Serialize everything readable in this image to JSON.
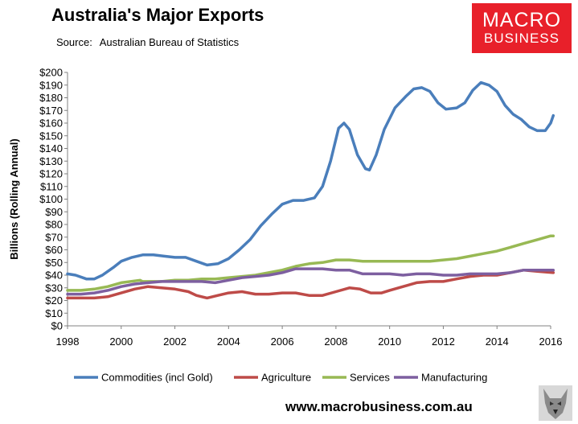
{
  "title": "Australia's Major Exports",
  "source_label": "Source:",
  "source_text": "Australian Bureau of Statistics",
  "logo": {
    "line1": "MACRO",
    "line2": "BUSINESS",
    "color": "#e8202a"
  },
  "website": "www.macrobusiness.com.au",
  "chart_data": {
    "type": "line",
    "ylabel": "Billions (Rolling Annual)",
    "xlabel": "",
    "xlim": [
      1998,
      2016
    ],
    "ylim": [
      0,
      200
    ],
    "y_ticks": [
      0,
      10,
      20,
      30,
      40,
      50,
      60,
      70,
      80,
      90,
      100,
      110,
      120,
      130,
      140,
      150,
      160,
      170,
      180,
      190,
      200
    ],
    "y_tick_labels": [
      "$0",
      "$10",
      "$20",
      "$30",
      "$40",
      "$50",
      "$60",
      "$70",
      "$80",
      "$90",
      "$100",
      "$110",
      "$120",
      "$130",
      "$140",
      "$150",
      "$160",
      "$170",
      "$180",
      "$190",
      "$200"
    ],
    "x_ticks": [
      1998,
      2000,
      2002,
      2004,
      2006,
      2008,
      2010,
      2012,
      2014,
      2016
    ],
    "x_tick_labels": [
      "1998",
      "2000",
      "2002",
      "2004",
      "2006",
      "2008",
      "2010",
      "2012",
      "2014",
      "2016"
    ],
    "grid": false,
    "legend_position": "bottom",
    "series": [
      {
        "name": "Commodities (incl Gold)",
        "color": "#4a7ebb",
        "points": [
          [
            1998,
            41
          ],
          [
            1998.3,
            40
          ],
          [
            1998.7,
            37
          ],
          [
            1999,
            37
          ],
          [
            1999.3,
            40
          ],
          [
            1999.7,
            46
          ],
          [
            2000,
            51
          ],
          [
            2000.4,
            54
          ],
          [
            2000.8,
            56
          ],
          [
            2001.2,
            56
          ],
          [
            2001.6,
            55
          ],
          [
            2002,
            54
          ],
          [
            2002.4,
            54
          ],
          [
            2002.8,
            51
          ],
          [
            2003.2,
            48
          ],
          [
            2003.6,
            49
          ],
          [
            2004,
            53
          ],
          [
            2004.4,
            60
          ],
          [
            2004.8,
            68
          ],
          [
            2005.2,
            79
          ],
          [
            2005.6,
            88
          ],
          [
            2006,
            96
          ],
          [
            2006.4,
            99
          ],
          [
            2006.8,
            99
          ],
          [
            2007.2,
            101
          ],
          [
            2007.5,
            110
          ],
          [
            2007.8,
            130
          ],
          [
            2008.1,
            156
          ],
          [
            2008.3,
            160
          ],
          [
            2008.5,
            155
          ],
          [
            2008.8,
            135
          ],
          [
            2009.1,
            124
          ],
          [
            2009.25,
            123
          ],
          [
            2009.5,
            135
          ],
          [
            2009.8,
            155
          ],
          [
            2010.2,
            172
          ],
          [
            2010.6,
            181
          ],
          [
            2010.9,
            187
          ],
          [
            2011.2,
            188
          ],
          [
            2011.5,
            185
          ],
          [
            2011.8,
            176
          ],
          [
            2012.1,
            171
          ],
          [
            2012.5,
            172
          ],
          [
            2012.8,
            176
          ],
          [
            2013.1,
            186
          ],
          [
            2013.4,
            192
          ],
          [
            2013.7,
            190
          ],
          [
            2014,
            185
          ],
          [
            2014.3,
            174
          ],
          [
            2014.6,
            167
          ],
          [
            2014.9,
            163
          ],
          [
            2015.2,
            157
          ],
          [
            2015.5,
            154
          ],
          [
            2015.8,
            154
          ],
          [
            2016,
            160
          ],
          [
            2016.1,
            166
          ]
        ]
      },
      {
        "name": "Agriculture",
        "color": "#be4b48",
        "points": [
          [
            1998,
            22
          ],
          [
            1998.5,
            22
          ],
          [
            1999,
            22
          ],
          [
            1999.5,
            23
          ],
          [
            2000,
            26
          ],
          [
            2000.5,
            29
          ],
          [
            2001,
            31
          ],
          [
            2001.5,
            30
          ],
          [
            2002,
            29
          ],
          [
            2002.5,
            27
          ],
          [
            2002.8,
            24
          ],
          [
            2003.2,
            22
          ],
          [
            2003.6,
            24
          ],
          [
            2004,
            26
          ],
          [
            2004.5,
            27
          ],
          [
            2005,
            25
          ],
          [
            2005.5,
            25
          ],
          [
            2006,
            26
          ],
          [
            2006.5,
            26
          ],
          [
            2007,
            24
          ],
          [
            2007.5,
            24
          ],
          [
            2008,
            27
          ],
          [
            2008.5,
            30
          ],
          [
            2008.9,
            29
          ],
          [
            2009.3,
            26
          ],
          [
            2009.7,
            26
          ],
          [
            2010,
            28
          ],
          [
            2010.5,
            31
          ],
          [
            2011,
            34
          ],
          [
            2011.5,
            35
          ],
          [
            2012,
            35
          ],
          [
            2012.5,
            37
          ],
          [
            2013,
            39
          ],
          [
            2013.5,
            40
          ],
          [
            2014,
            40
          ],
          [
            2014.5,
            42
          ],
          [
            2015,
            44
          ],
          [
            2015.5,
            43
          ],
          [
            2016.1,
            42
          ]
        ]
      },
      {
        "name": "Services",
        "color": "#98b954",
        "points": [
          [
            1998,
            28
          ],
          [
            1998.5,
            28
          ],
          [
            1999,
            29
          ],
          [
            1999.5,
            31
          ],
          [
            2000,
            34
          ],
          [
            2000.7,
            36
          ],
          [
            2000.8,
            35
          ],
          [
            2001.5,
            35
          ],
          [
            2002,
            36
          ],
          [
            2002.5,
            36
          ],
          [
            2003,
            37
          ],
          [
            2003.5,
            37
          ],
          [
            2004,
            38
          ],
          [
            2004.5,
            39
          ],
          [
            2005,
            40
          ],
          [
            2005.5,
            42
          ],
          [
            2006,
            44
          ],
          [
            2006.5,
            47
          ],
          [
            2007,
            49
          ],
          [
            2007.5,
            50
          ],
          [
            2008,
            52
          ],
          [
            2008.5,
            52
          ],
          [
            2009,
            51
          ],
          [
            2009.5,
            51
          ],
          [
            2010,
            51
          ],
          [
            2010.5,
            51
          ],
          [
            2011,
            51
          ],
          [
            2011.5,
            51
          ],
          [
            2012,
            52
          ],
          [
            2012.5,
            53
          ],
          [
            2013,
            55
          ],
          [
            2013.5,
            57
          ],
          [
            2014,
            59
          ],
          [
            2014.5,
            62
          ],
          [
            2015,
            65
          ],
          [
            2015.5,
            68
          ],
          [
            2016,
            71
          ],
          [
            2016.1,
            71
          ]
        ]
      },
      {
        "name": "Manufacturing",
        "color": "#7d5fa0",
        "points": [
          [
            1998,
            25
          ],
          [
            1998.5,
            25
          ],
          [
            1999,
            26
          ],
          [
            1999.5,
            28
          ],
          [
            2000,
            31
          ],
          [
            2000.5,
            33
          ],
          [
            2001,
            34
          ],
          [
            2001.5,
            35
          ],
          [
            2002,
            35
          ],
          [
            2002.5,
            35
          ],
          [
            2003,
            35
          ],
          [
            2003.5,
            34
          ],
          [
            2004,
            36
          ],
          [
            2004.5,
            38
          ],
          [
            2005,
            39
          ],
          [
            2005.5,
            40
          ],
          [
            2006,
            42
          ],
          [
            2006.5,
            45
          ],
          [
            2007,
            45
          ],
          [
            2007.5,
            45
          ],
          [
            2008,
            44
          ],
          [
            2008.5,
            44
          ],
          [
            2009,
            41
          ],
          [
            2009.5,
            41
          ],
          [
            2010,
            41
          ],
          [
            2010.5,
            40
          ],
          [
            2011,
            41
          ],
          [
            2011.5,
            41
          ],
          [
            2012,
            40
          ],
          [
            2012.5,
            40
          ],
          [
            2013,
            41
          ],
          [
            2013.5,
            41
          ],
          [
            2014,
            41
          ],
          [
            2014.5,
            42
          ],
          [
            2015,
            44
          ],
          [
            2015.5,
            44
          ],
          [
            2016.1,
            44
          ]
        ]
      }
    ]
  }
}
